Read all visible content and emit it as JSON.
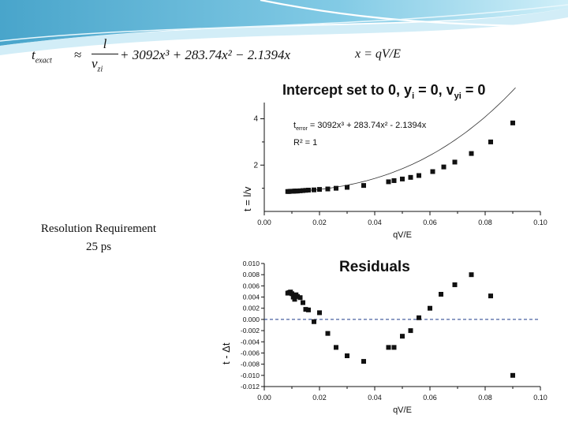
{
  "formula": {
    "lhs_base": "t",
    "lhs_sub": "exact",
    "approx_symbol": "≈",
    "frac_num": "l",
    "frac_den_base": "v",
    "frac_den_sub": "zi",
    "terms": "+ 3092x³ + 283.74x² − 2.1394x"
  },
  "x_definition": "x = qV/E",
  "resolution": {
    "line1": "Resolution Requirement",
    "line2": "25 ps"
  },
  "colors": {
    "marker": "#111111",
    "residual_zero_line": "#1e3a8a",
    "banner": "#3fa0c8"
  },
  "chart_data": [
    {
      "type": "scatter",
      "title": "Intercept set to 0, y",
      "title_sub": "i",
      "title_mid": " = 0, v",
      "title_sub2": "yi",
      "title_end": " = 0",
      "ylabel": "t = l/v",
      "xlabel": "qV/E",
      "annotation_line1": "t",
      "annotation_line1_sub": "error",
      "annotation_line1_rest": " = 3092x³ + 283.74x² - 2.1394x",
      "annotation_line2": "R² = 1",
      "xlim": [
        0.0,
        0.1
      ],
      "ylim": [
        0,
        4.7
      ],
      "xticks": [
        "0.00",
        "0.02",
        "0.04",
        "0.06",
        "0.08",
        "0.10"
      ],
      "yticks": [
        {
          "v": 4,
          "label": "4"
        },
        {
          "v": 2,
          "label": "2"
        }
      ],
      "points": [
        [
          0.0085,
          0.86
        ],
        [
          0.009,
          0.86
        ],
        [
          0.0095,
          0.87
        ],
        [
          0.01,
          0.87
        ],
        [
          0.0105,
          0.87
        ],
        [
          0.011,
          0.88
        ],
        [
          0.0115,
          0.88
        ],
        [
          0.012,
          0.88
        ],
        [
          0.013,
          0.89
        ],
        [
          0.014,
          0.9
        ],
        [
          0.015,
          0.91
        ],
        [
          0.016,
          0.92
        ],
        [
          0.018,
          0.93
        ],
        [
          0.02,
          0.95
        ],
        [
          0.023,
          0.97
        ],
        [
          0.026,
          1.0
        ],
        [
          0.03,
          1.04
        ],
        [
          0.036,
          1.12
        ],
        [
          0.045,
          1.28
        ],
        [
          0.047,
          1.33
        ],
        [
          0.05,
          1.4
        ],
        [
          0.053,
          1.47
        ],
        [
          0.056,
          1.55
        ],
        [
          0.061,
          1.72
        ],
        [
          0.065,
          1.92
        ],
        [
          0.069,
          2.13
        ],
        [
          0.075,
          2.5
        ],
        [
          0.082,
          3.0
        ],
        [
          0.09,
          3.82
        ]
      ],
      "fit_coefficients": {
        "a3": 3092,
        "a2": 283.74,
        "a1": -2.1394,
        "offset": 0.0
      }
    },
    {
      "type": "scatter",
      "title": "Residuals",
      "ylabel": "t - Δt",
      "xlabel": "qV/E",
      "xlim": [
        0.0,
        0.1
      ],
      "ylim": [
        -0.012,
        0.01
      ],
      "xticks": [
        "0.00",
        "0.02",
        "0.04",
        "0.06",
        "0.08",
        "0.10"
      ],
      "yticks": [
        "0.010",
        "0.008",
        "0.006",
        "0.004",
        "0.002",
        "0.000",
        "-0.002",
        "-0.004",
        "-0.006",
        "-0.008",
        "-0.010",
        "-0.012"
      ],
      "zero_line": 0.0,
      "points": [
        [
          0.0085,
          0.0047
        ],
        [
          0.009,
          0.0048
        ],
        [
          0.0095,
          0.0049
        ],
        [
          0.01,
          0.0046
        ],
        [
          0.0105,
          0.004
        ],
        [
          0.011,
          0.0036
        ],
        [
          0.0115,
          0.0044
        ],
        [
          0.012,
          0.0041
        ],
        [
          0.013,
          0.0039
        ],
        [
          0.014,
          0.003
        ],
        [
          0.015,
          0.0018
        ],
        [
          0.016,
          0.0017
        ],
        [
          0.018,
          -0.0004
        ],
        [
          0.02,
          0.0012
        ],
        [
          0.023,
          -0.0025
        ],
        [
          0.026,
          -0.005
        ],
        [
          0.03,
          -0.0065
        ],
        [
          0.036,
          -0.0075
        ],
        [
          0.045,
          -0.005
        ],
        [
          0.047,
          -0.005
        ],
        [
          0.05,
          -0.003
        ],
        [
          0.053,
          -0.002
        ],
        [
          0.056,
          0.0003
        ],
        [
          0.06,
          0.002
        ],
        [
          0.064,
          0.0045
        ],
        [
          0.069,
          0.0062
        ],
        [
          0.075,
          0.008
        ],
        [
          0.082,
          0.0042
        ],
        [
          0.09,
          -0.01
        ]
      ]
    }
  ]
}
